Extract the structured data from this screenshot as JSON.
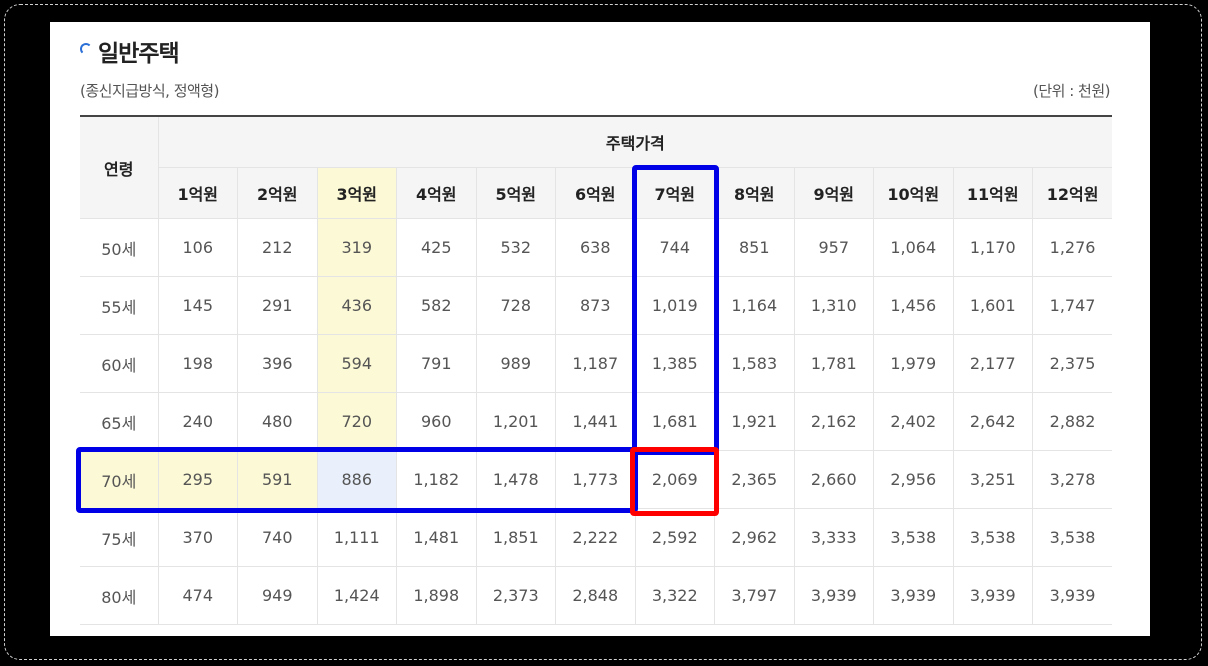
{
  "section": {
    "title": "일반주택",
    "subtitle": "(종신지급방식, 정액형)",
    "unit": "(단위 : 천원)"
  },
  "table": {
    "age_header": "연령",
    "group_header": "주택가격",
    "price_headers": [
      "1억원",
      "2억원",
      "3억원",
      "4억원",
      "5억원",
      "6억원",
      "7억원",
      "8억원",
      "9억원",
      "10억원",
      "11억원",
      "12억원"
    ],
    "rows": [
      {
        "age": "50세",
        "values": [
          "106",
          "212",
          "319",
          "425",
          "532",
          "638",
          "744",
          "851",
          "957",
          "1,064",
          "1,170",
          "1,276"
        ]
      },
      {
        "age": "55세",
        "values": [
          "145",
          "291",
          "436",
          "582",
          "728",
          "873",
          "1,019",
          "1,164",
          "1,310",
          "1,456",
          "1,601",
          "1,747"
        ]
      },
      {
        "age": "60세",
        "values": [
          "198",
          "396",
          "594",
          "791",
          "989",
          "1,187",
          "1,385",
          "1,583",
          "1,781",
          "1,979",
          "2,177",
          "2,375"
        ]
      },
      {
        "age": "65세",
        "values": [
          "240",
          "480",
          "720",
          "960",
          "1,201",
          "1,441",
          "1,681",
          "1,921",
          "2,162",
          "2,402",
          "2,642",
          "2,882"
        ]
      },
      {
        "age": "70세",
        "values": [
          "295",
          "591",
          "886",
          "1,182",
          "1,478",
          "1,773",
          "2,069",
          "2,365",
          "2,660",
          "2,956",
          "3,251",
          "3,278"
        ]
      },
      {
        "age": "75세",
        "values": [
          "370",
          "740",
          "1,111",
          "1,481",
          "1,851",
          "2,222",
          "2,592",
          "2,962",
          "3,333",
          "3,538",
          "3,538",
          "3,538"
        ]
      },
      {
        "age": "80세",
        "values": [
          "474",
          "949",
          "1,424",
          "1,898",
          "2,373",
          "2,848",
          "3,322",
          "3,797",
          "3,939",
          "3,939",
          "3,939",
          "3,939"
        ]
      }
    ]
  },
  "colors": {
    "highlight_column": "#fcf9d6",
    "highlight_cell": "#e9f0fb",
    "annotation_blue": "#0000e6",
    "annotation_red": "#ff0000"
  }
}
